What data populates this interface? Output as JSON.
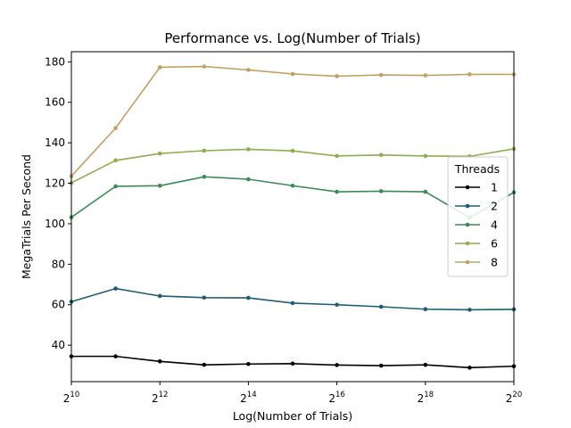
{
  "chart_data": {
    "type": "line",
    "title": "Performance vs. Log(Number of Trials)",
    "xlabel": "Log(Number of Trials)",
    "ylabel": "MegaTrials Per Second",
    "x_scale": "log2",
    "x": [
      1024,
      2048,
      4096,
      8192,
      16384,
      32768,
      65536,
      131072,
      262144,
      524288,
      1048576
    ],
    "xlim": [
      1024,
      1048576
    ],
    "ylim": [
      22,
      185
    ],
    "x_ticks": [
      {
        "value": 1024,
        "base": "2",
        "exp": "10"
      },
      {
        "value": 4096,
        "base": "2",
        "exp": "12"
      },
      {
        "value": 16384,
        "base": "2",
        "exp": "14"
      },
      {
        "value": 65536,
        "base": "2",
        "exp": "16"
      },
      {
        "value": 262144,
        "base": "2",
        "exp": "18"
      },
      {
        "value": 1048576,
        "base": "2",
        "exp": "20"
      }
    ],
    "y_ticks": [
      40,
      60,
      80,
      100,
      120,
      140,
      160,
      180
    ],
    "grid": false,
    "legend": {
      "title": "Threads",
      "placement": "center-right"
    },
    "series": [
      {
        "name": "1",
        "color": "#000000",
        "values": [
          34.5,
          34.5,
          32.0,
          30.3,
          30.7,
          30.9,
          30.2,
          29.9,
          30.3,
          28.9,
          29.6
        ]
      },
      {
        "name": "2",
        "color": "#1f5b75",
        "values": [
          61.5,
          68.0,
          64.3,
          63.5,
          63.4,
          60.8,
          60.0,
          59.0,
          57.8,
          57.5,
          57.7
        ]
      },
      {
        "name": "4",
        "color": "#3b8a56",
        "values": [
          103.2,
          118.5,
          118.8,
          123.2,
          122.0,
          118.8,
          115.8,
          116.1,
          115.8,
          103.0,
          115.5
        ]
      },
      {
        "name": "6",
        "color": "#8fac52",
        "values": [
          120.2,
          131.3,
          134.7,
          136.1,
          136.8,
          136.0,
          133.5,
          134.0,
          133.5,
          133.3,
          137.0
        ]
      },
      {
        "name": "8",
        "color": "#c4a068",
        "values": [
          123.5,
          147.3,
          177.3,
          177.7,
          176.0,
          174.0,
          172.9,
          173.5,
          173.3,
          173.8,
          173.8
        ]
      }
    ]
  }
}
